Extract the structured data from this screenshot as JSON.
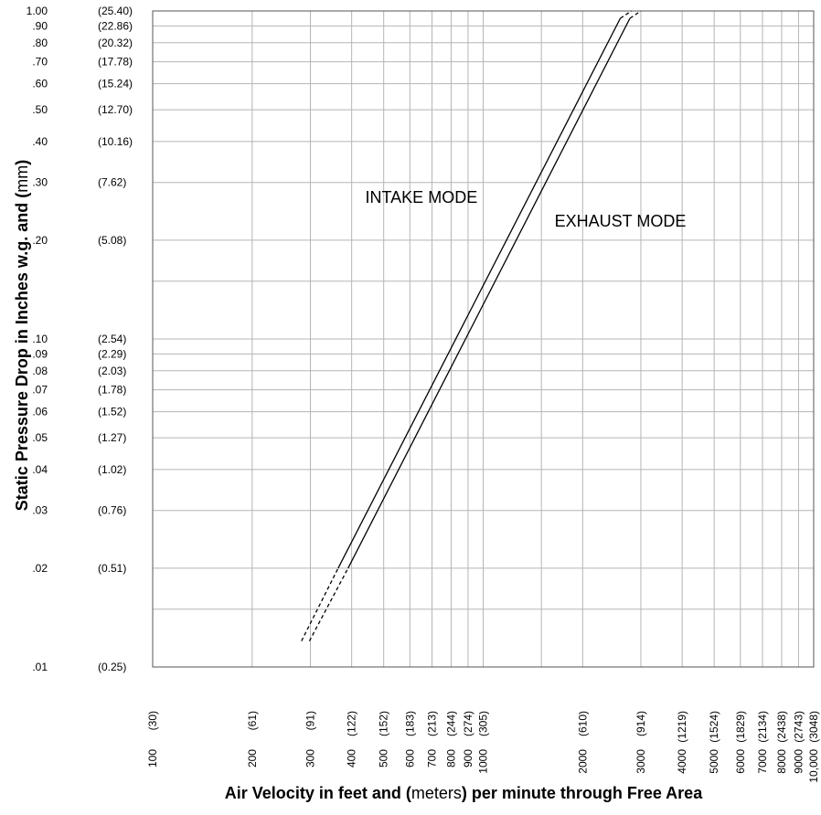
{
  "chart_data": {
    "type": "line",
    "xscale": "log",
    "yscale": "log",
    "xlim": [
      100,
      10000
    ],
    "ylim": [
      0.01,
      1.0
    ],
    "grid": true,
    "xlabel_parts": {
      "bold_start": "Air Velocity in feet and (",
      "normal": "meters",
      "bold_end": ") per minute through Free Area"
    },
    "ylabel_parts": {
      "bold_start": "Static Pressure Drop in Inches w.g. and (",
      "normal": "mm",
      "bold_end": ")"
    },
    "y_ticks": [
      {
        "value": 1.0,
        "label": "1.00",
        "alt": "(25.40)"
      },
      {
        "value": 0.9,
        "label": ".90",
        "alt": "(22.86)"
      },
      {
        "value": 0.8,
        "label": ".80",
        "alt": "(20.32)"
      },
      {
        "value": 0.7,
        "label": ".70",
        "alt": "(17.78)"
      },
      {
        "value": 0.6,
        "label": ".60",
        "alt": "(15.24)"
      },
      {
        "value": 0.5,
        "label": ".50",
        "alt": "(12.70)"
      },
      {
        "value": 0.4,
        "label": ".40",
        "alt": "(10.16)"
      },
      {
        "value": 0.3,
        "label": ".30",
        "alt": "(7.62)"
      },
      {
        "value": 0.2,
        "label": ".20",
        "alt": "(5.08)"
      },
      {
        "value": 0.1,
        "label": ".10",
        "alt": "(2.54)"
      },
      {
        "value": 0.09,
        "label": ".09",
        "alt": "(2.29)"
      },
      {
        "value": 0.08,
        "label": ".08",
        "alt": "(2.03)"
      },
      {
        "value": 0.07,
        "label": ".07",
        "alt": "(1.78)"
      },
      {
        "value": 0.06,
        "label": ".06",
        "alt": "(1.52)"
      },
      {
        "value": 0.05,
        "label": ".05",
        "alt": "(1.27)"
      },
      {
        "value": 0.04,
        "label": ".04",
        "alt": "(1.02)"
      },
      {
        "value": 0.03,
        "label": ".03",
        "alt": "(0.76)"
      },
      {
        "value": 0.02,
        "label": ".02",
        "alt": "(0.51)"
      },
      {
        "value": 0.01,
        "label": ".01",
        "alt": "(0.25)"
      }
    ],
    "y_gridlines": [
      1.0,
      0.9,
      0.8,
      0.7,
      0.6,
      0.5,
      0.4,
      0.3,
      0.2,
      0.15,
      0.1,
      0.09,
      0.08,
      0.07,
      0.06,
      0.05,
      0.04,
      0.03,
      0.02,
      0.015,
      0.01
    ],
    "x_ticks": [
      {
        "value": 100,
        "label": "100",
        "alt": "(30)"
      },
      {
        "value": 200,
        "label": "200",
        "alt": "(61)"
      },
      {
        "value": 300,
        "label": "300",
        "alt": "(91)"
      },
      {
        "value": 400,
        "label": "400",
        "alt": "(122)"
      },
      {
        "value": 500,
        "label": "500",
        "alt": "(152)"
      },
      {
        "value": 600,
        "label": "600",
        "alt": "(183)"
      },
      {
        "value": 700,
        "label": "700",
        "alt": "(213)"
      },
      {
        "value": 800,
        "label": "800",
        "alt": "(244)"
      },
      {
        "value": 900,
        "label": "900",
        "alt": "(274)"
      },
      {
        "value": 1000,
        "label": "1000",
        "alt": "(305)"
      },
      {
        "value": 2000,
        "label": "2000",
        "alt": "(610)"
      },
      {
        "value": 3000,
        "label": "3000",
        "alt": "(914)"
      },
      {
        "value": 4000,
        "label": "4000",
        "alt": "(1219)"
      },
      {
        "value": 5000,
        "label": "5000",
        "alt": "(1524)"
      },
      {
        "value": 6000,
        "label": "6000",
        "alt": "(1829)"
      },
      {
        "value": 7000,
        "label": "7000",
        "alt": "(2134)"
      },
      {
        "value": 8000,
        "label": "8000",
        "alt": "(2438)"
      },
      {
        "value": 9000,
        "label": "9000",
        "alt": "(2743)"
      },
      {
        "value": 10000,
        "label": "10,000",
        "alt": "(3048)"
      }
    ],
    "x_gridlines": [
      100,
      200,
      300,
      400,
      500,
      600,
      700,
      800,
      900,
      1000,
      1500,
      2000,
      3000,
      4000,
      5000,
      6000,
      7000,
      8000,
      9000,
      10000
    ],
    "series": [
      {
        "name": "INTAKE MODE",
        "solid": [
          [
            364,
            0.02
          ],
          [
            2600,
            0.95
          ]
        ],
        "dashed_start": [
          [
            282,
            0.012
          ],
          [
            364,
            0.02
          ]
        ],
        "dashed_end": [
          [
            2600,
            0.95
          ],
          [
            2810,
            1.0
          ]
        ]
      },
      {
        "name": "EXHAUST MODE",
        "solid": [
          [
            390,
            0.02
          ],
          [
            2780,
            0.95
          ]
        ],
        "dashed_start": [
          [
            298,
            0.012
          ],
          [
            390,
            0.02
          ]
        ],
        "dashed_end": [
          [
            2780,
            0.95
          ],
          [
            3000,
            1.0
          ]
        ]
      }
    ],
    "annotations": [
      {
        "text": "INTAKE MODE",
        "x": 650,
        "y": 0.26
      },
      {
        "text": "EXHAUST MODE",
        "x": 2600,
        "y": 0.22
      }
    ]
  }
}
